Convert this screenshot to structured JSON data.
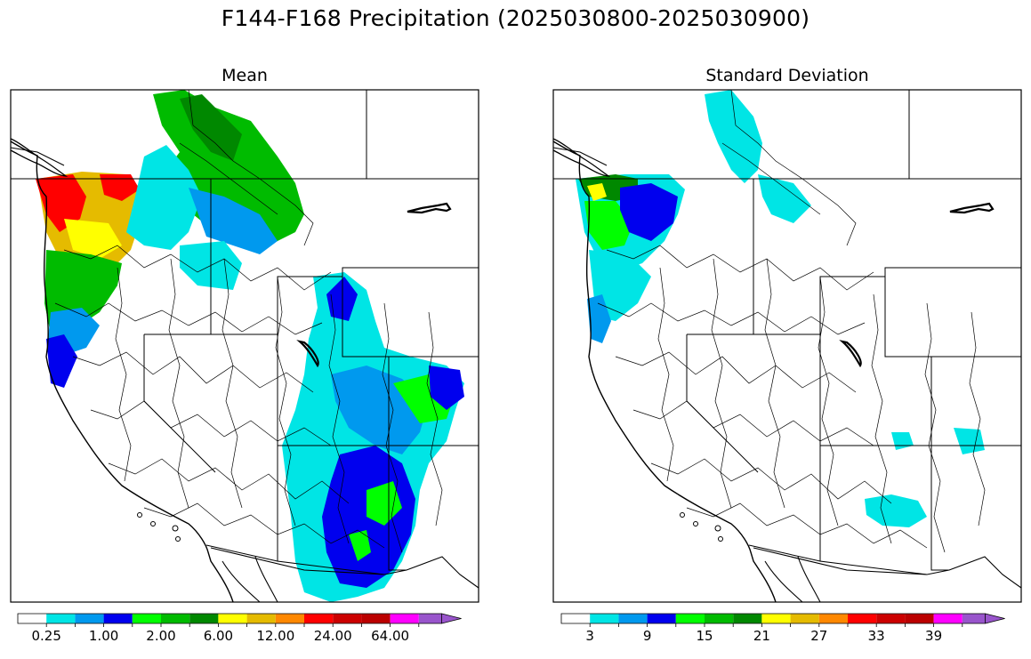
{
  "figure": {
    "title": "F144-F168 Precipitation (2025030800-2025030900)"
  },
  "chart_data": [
    {
      "type": "heatmap",
      "title": "Mean",
      "colorbar": {
        "colors": [
          "#ffffff",
          "#00e5e5",
          "#0099ee",
          "#0000ee",
          "#00ff00",
          "#00bb00",
          "#008800",
          "#ffff00",
          "#e5bb00",
          "#ff8800",
          "#ff0000",
          "#cc0000",
          "#bb0000",
          "#ff00ff",
          "#9955cc"
        ],
        "tick_labels": [
          "0.25",
          "1.00",
          "2.00",
          "6.00",
          "12.00",
          "24.00",
          "64.00"
        ],
        "extend": "max"
      }
    },
    {
      "type": "heatmap",
      "title": "Standard Deviation",
      "colorbar": {
        "colors": [
          "#ffffff",
          "#00e5e5",
          "#0099ee",
          "#0000ee",
          "#00ff00",
          "#00bb00",
          "#008800",
          "#ffff00",
          "#e5bb00",
          "#ff8800",
          "#ff0000",
          "#cc0000",
          "#bb0000",
          "#ff00ff",
          "#9955cc"
        ],
        "tick_labels": [
          "3",
          "9",
          "15",
          "21",
          "27",
          "33",
          "39"
        ],
        "extend": "max"
      }
    }
  ]
}
